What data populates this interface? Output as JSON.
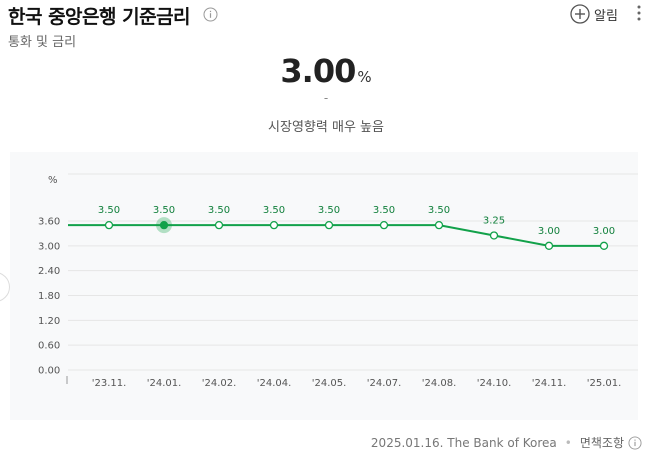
{
  "header": {
    "title": "한국 중앙은행 기준금리",
    "subtitle": "통화 및 금리",
    "alarm_label": "알림"
  },
  "summary": {
    "rate_value": "3.00",
    "rate_unit": "%",
    "change": "-",
    "sentiment": "시장영향력 매우 높음"
  },
  "chart_data": {
    "type": "line",
    "ylabel": "%",
    "ylim": [
      0,
      3.6
    ],
    "yticks": [
      "3.60",
      "3.00",
      "2.40",
      "1.80",
      "1.20",
      "0.60",
      "0.00"
    ],
    "ytick_values": [
      3.6,
      3.0,
      2.4,
      1.8,
      1.2,
      0.6,
      0.0
    ],
    "x": [
      "'23.11.",
      "'24.01.",
      "'24.02.",
      "'24.04.",
      "'24.05.",
      "'24.07.",
      "'24.08.",
      "'24.10.",
      "'24.11.",
      "'25.01."
    ],
    "values": [
      3.5,
      3.5,
      3.5,
      3.5,
      3.5,
      3.5,
      3.5,
      3.25,
      3.0,
      3.0
    ],
    "labels": [
      "3.50",
      "3.50",
      "3.50",
      "3.50",
      "3.50",
      "3.50",
      "3.50",
      "3.25",
      "3.00",
      "3.00"
    ],
    "highlighted_index": 1,
    "line_color": "#12a14a",
    "grid": true
  },
  "footer": {
    "source": "2025.01.16. The Bank of Korea",
    "disclaimer": "면책조항"
  }
}
